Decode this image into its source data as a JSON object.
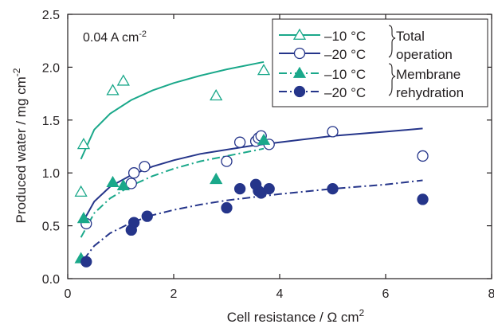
{
  "chart_data": {
    "type": "scatter",
    "xlabel": "Cell resistance / Ω cm",
    "xlabel_sup": "2",
    "ylabel": "Produced water / mg cm",
    "ylabel_sup": "-2",
    "annotation": "0.04 A cm",
    "annotation_sup": "-2",
    "xlim": [
      0,
      8
    ],
    "ylim": [
      0,
      2.5
    ],
    "x_ticks": [
      0,
      2,
      4,
      6,
      8
    ],
    "y_ticks": [
      0.0,
      0.5,
      1.0,
      1.5,
      2.0,
      2.5
    ],
    "x_tick_labels": [
      "0",
      "2",
      "4",
      "6",
      "8"
    ],
    "y_tick_labels": [
      "0.0",
      "0.5",
      "1.0",
      "1.5",
      "2.0",
      "2.5"
    ],
    "colors": {
      "green": "#1aa88a",
      "navy": "#25358a",
      "axis": "#231f20"
    },
    "legend": {
      "position": "top-right",
      "entries": [
        "–10 °C",
        "–20 °C",
        "–10 °C",
        "–20 °C"
      ],
      "group_labels": [
        "Total",
        "operation",
        "Membrane",
        "rehydration"
      ]
    },
    "series": [
      {
        "name": "–10 °C",
        "group": "Total operation",
        "marker": "open-triangle",
        "color": "#1aa88a",
        "line_style": "solid",
        "points": [
          [
            0.25,
            0.82
          ],
          [
            0.3,
            1.27
          ],
          [
            0.85,
            1.78
          ],
          [
            1.05,
            1.87
          ],
          [
            2.8,
            1.73
          ],
          [
            3.7,
            1.97
          ]
        ],
        "fit": [
          [
            0.25,
            1.13
          ],
          [
            0.5,
            1.41
          ],
          [
            0.8,
            1.56
          ],
          [
            1.2,
            1.69
          ],
          [
            1.6,
            1.78
          ],
          [
            2.0,
            1.85
          ],
          [
            2.5,
            1.92
          ],
          [
            3.0,
            1.98
          ],
          [
            3.7,
            2.05
          ]
        ]
      },
      {
        "name": "–20 °C",
        "group": "Total operation",
        "marker": "open-circle",
        "color": "#25358a",
        "line_style": "solid",
        "points": [
          [
            0.35,
            0.52
          ],
          [
            1.2,
            0.9
          ],
          [
            1.25,
            1.0
          ],
          [
            1.45,
            1.06
          ],
          [
            3.0,
            1.11
          ],
          [
            3.25,
            1.29
          ],
          [
            3.55,
            1.3
          ],
          [
            3.6,
            1.33
          ],
          [
            3.65,
            1.35
          ],
          [
            3.8,
            1.27
          ],
          [
            5.0,
            1.39
          ],
          [
            6.7,
            1.16
          ]
        ],
        "fit": [
          [
            0.3,
            0.55
          ],
          [
            0.5,
            0.73
          ],
          [
            0.8,
            0.87
          ],
          [
            1.2,
            0.98
          ],
          [
            1.6,
            1.06
          ],
          [
            2.0,
            1.12
          ],
          [
            2.5,
            1.18
          ],
          [
            3.0,
            1.22
          ],
          [
            3.5,
            1.26
          ],
          [
            4.0,
            1.29
          ],
          [
            5.0,
            1.35
          ],
          [
            6.0,
            1.39
          ],
          [
            6.7,
            1.42
          ]
        ]
      },
      {
        "name": "–10 °C",
        "group": "Membrane rehydration",
        "marker": "filled-triangle",
        "color": "#1aa88a",
        "line_style": "dash-dot",
        "points": [
          [
            0.25,
            0.19
          ],
          [
            0.3,
            0.57
          ],
          [
            0.85,
            0.91
          ],
          [
            1.05,
            0.88
          ],
          [
            2.8,
            0.94
          ],
          [
            3.7,
            1.31
          ]
        ],
        "fit": [
          [
            0.25,
            0.39
          ],
          [
            0.5,
            0.62
          ],
          [
            0.8,
            0.76
          ],
          [
            1.2,
            0.88
          ],
          [
            1.6,
            0.97
          ],
          [
            2.0,
            1.04
          ],
          [
            2.5,
            1.11
          ],
          [
            3.0,
            1.16
          ],
          [
            3.7,
            1.23
          ]
        ]
      },
      {
        "name": "–20 °C",
        "group": "Membrane rehydration",
        "marker": "filled-circle",
        "color": "#25358a",
        "line_style": "dash-dot",
        "points": [
          [
            0.35,
            0.16
          ],
          [
            1.2,
            0.46
          ],
          [
            1.25,
            0.53
          ],
          [
            1.5,
            0.59
          ],
          [
            3.0,
            0.67
          ],
          [
            3.25,
            0.85
          ],
          [
            3.55,
            0.89
          ],
          [
            3.6,
            0.83
          ],
          [
            3.65,
            0.81
          ],
          [
            3.8,
            0.85
          ],
          [
            5.0,
            0.85
          ],
          [
            6.7,
            0.75
          ]
        ],
        "fit": [
          [
            0.3,
            0.18
          ],
          [
            0.5,
            0.31
          ],
          [
            0.8,
            0.43
          ],
          [
            1.2,
            0.53
          ],
          [
            1.6,
            0.6
          ],
          [
            2.0,
            0.65
          ],
          [
            2.5,
            0.7
          ],
          [
            3.0,
            0.74
          ],
          [
            3.5,
            0.77
          ],
          [
            4.0,
            0.8
          ],
          [
            5.0,
            0.85
          ],
          [
            6.0,
            0.89
          ],
          [
            6.7,
            0.93
          ]
        ]
      }
    ]
  }
}
